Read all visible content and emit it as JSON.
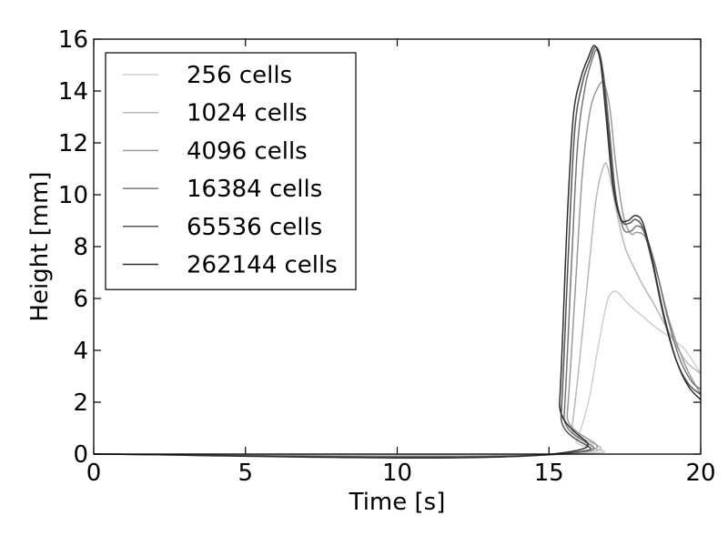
{
  "chart_data": {
    "type": "line",
    "xlabel": "Time [s]",
    "ylabel": "Height [mm]",
    "xlim": [
      0,
      20
    ],
    "ylim": [
      0,
      16
    ],
    "xticks": [
      0,
      5,
      10,
      15,
      20
    ],
    "yticks": [
      0,
      2,
      4,
      6,
      8,
      10,
      12,
      14,
      16
    ],
    "grid": false,
    "legend_position": "top-left",
    "series": [
      {
        "name": "256 cells",
        "color": "#cfcfcf",
        "points": [
          [
            0,
            0
          ],
          [
            15.6,
            0
          ],
          [
            15.9,
            0.5
          ],
          [
            16.3,
            2.0
          ],
          [
            16.6,
            4.0
          ],
          [
            16.9,
            5.8
          ],
          [
            17.1,
            6.25
          ],
          [
            17.3,
            6.2
          ],
          [
            17.6,
            5.8
          ],
          [
            18.0,
            5.4
          ],
          [
            18.5,
            4.9
          ],
          [
            19.0,
            4.5
          ],
          [
            19.5,
            4.0
          ],
          [
            20,
            3.1
          ]
        ]
      },
      {
        "name": "1024 cells",
        "color": "#b8b8b8",
        "points": [
          [
            0,
            0
          ],
          [
            15.5,
            0
          ],
          [
            15.75,
            1.0
          ],
          [
            16.0,
            3.5
          ],
          [
            16.3,
            7.0
          ],
          [
            16.55,
            9.8
          ],
          [
            16.8,
            11.1
          ],
          [
            16.95,
            11.0
          ],
          [
            17.2,
            9.5
          ],
          [
            17.5,
            8.0
          ],
          [
            17.8,
            7.2
          ],
          [
            18.1,
            6.5
          ],
          [
            18.5,
            5.7
          ],
          [
            19.0,
            4.6
          ],
          [
            19.5,
            3.6
          ],
          [
            20,
            3.1
          ]
        ]
      },
      {
        "name": "4096 cells",
        "color": "#9a9a9a",
        "points": [
          [
            0,
            0
          ],
          [
            15.4,
            0
          ],
          [
            15.6,
            1.5
          ],
          [
            15.85,
            6.0
          ],
          [
            16.1,
            10.8
          ],
          [
            16.35,
            13.2
          ],
          [
            16.6,
            14.1
          ],
          [
            16.8,
            14.3
          ],
          [
            17.0,
            13.4
          ],
          [
            17.2,
            11.2
          ],
          [
            17.45,
            9.2
          ],
          [
            17.7,
            8.5
          ],
          [
            17.9,
            8.55
          ],
          [
            18.2,
            8.3
          ],
          [
            18.6,
            6.8
          ],
          [
            19.0,
            5.0
          ],
          [
            19.5,
            3.4
          ],
          [
            20,
            2.3
          ]
        ]
      },
      {
        "name": "16384 cells",
        "color": "#777777",
        "points": [
          [
            0,
            0
          ],
          [
            15.3,
            0
          ],
          [
            15.5,
            1.5
          ],
          [
            15.75,
            7.5
          ],
          [
            15.95,
            12.0
          ],
          [
            16.2,
            14.2
          ],
          [
            16.45,
            15.3
          ],
          [
            16.6,
            15.55
          ],
          [
            16.8,
            14.6
          ],
          [
            17.0,
            12.4
          ],
          [
            17.2,
            10.0
          ],
          [
            17.45,
            8.7
          ],
          [
            17.7,
            8.6
          ],
          [
            17.9,
            8.8
          ],
          [
            18.15,
            8.55
          ],
          [
            18.5,
            7.3
          ],
          [
            18.9,
            5.3
          ],
          [
            19.3,
            3.7
          ],
          [
            19.7,
            2.8
          ],
          [
            20,
            2.5
          ]
        ]
      },
      {
        "name": "65536 cells",
        "color": "#545454",
        "points": [
          [
            0,
            0
          ],
          [
            15.2,
            0
          ],
          [
            15.4,
            1.5
          ],
          [
            15.65,
            8.0
          ],
          [
            15.85,
            12.5
          ],
          [
            16.1,
            14.3
          ],
          [
            16.35,
            15.2
          ],
          [
            16.55,
            15.7
          ],
          [
            16.75,
            15.0
          ],
          [
            16.95,
            12.7
          ],
          [
            17.15,
            10.3
          ],
          [
            17.4,
            9.0
          ],
          [
            17.65,
            8.9
          ],
          [
            17.85,
            9.05
          ],
          [
            18.1,
            8.7
          ],
          [
            18.4,
            7.4
          ],
          [
            18.8,
            5.2
          ],
          [
            19.2,
            3.6
          ],
          [
            19.6,
            2.7
          ],
          [
            20,
            2.3
          ]
        ]
      },
      {
        "name": "262144 cells",
        "color": "#2e2e2e",
        "points": [
          [
            0,
            0
          ],
          [
            15.1,
            0
          ],
          [
            15.35,
            2.0
          ],
          [
            15.6,
            9.0
          ],
          [
            15.8,
            13.0
          ],
          [
            16.05,
            14.5
          ],
          [
            16.3,
            15.3
          ],
          [
            16.5,
            15.75
          ],
          [
            16.7,
            15.1
          ],
          [
            16.9,
            12.8
          ],
          [
            17.1,
            10.4
          ],
          [
            17.35,
            9.1
          ],
          [
            17.6,
            9.0
          ],
          [
            17.85,
            9.2
          ],
          [
            18.1,
            8.9
          ],
          [
            18.4,
            7.5
          ],
          [
            18.8,
            5.3
          ],
          [
            19.2,
            3.6
          ],
          [
            19.6,
            2.6
          ],
          [
            20,
            2.1
          ]
        ]
      }
    ]
  }
}
